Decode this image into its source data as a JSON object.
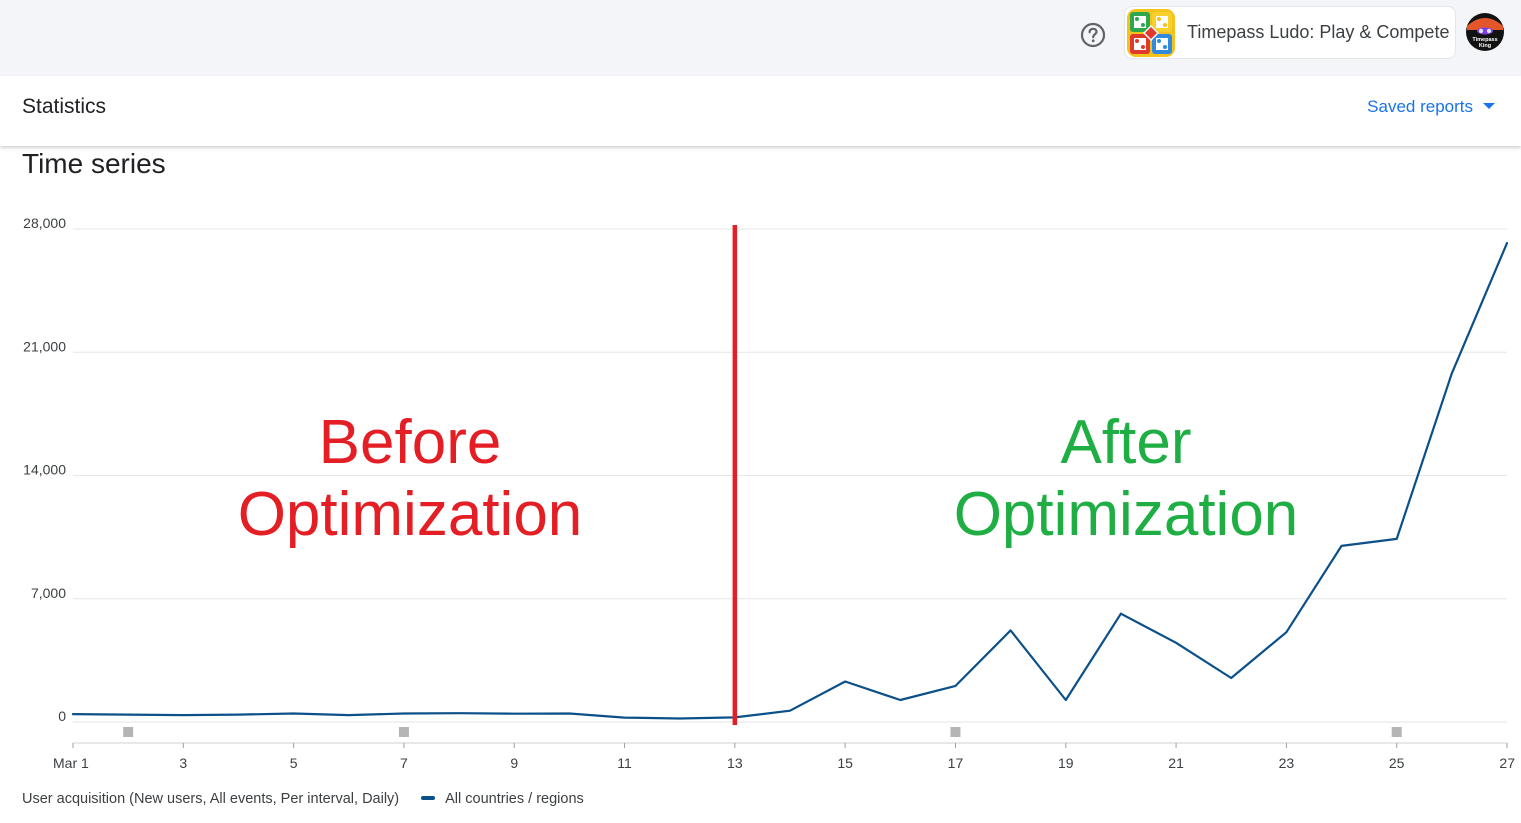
{
  "header": {
    "help_icon": "help-circle-icon",
    "app_name": "Timepass Ludo: Play & Compete",
    "app_logo_icon": "ludo-board-icon",
    "avatar_icon": "timepass-king-avatar",
    "avatar_text": "Timepass King"
  },
  "page": {
    "title": "Statistics",
    "saved_reports_label": "Saved reports",
    "section_title": "Time series"
  },
  "annotations": {
    "before_label_line1": "Before",
    "before_label_line2": "Optimization",
    "after_label_line1": "After",
    "after_label_line2": "Optimization",
    "before_color": "#e31e24",
    "after_color": "#1fae43",
    "divider_color": "#e31e24",
    "divider_at_day": 13
  },
  "legend": {
    "metric_label": "User acquisition (New users, All events, Per interval, Daily)",
    "series_label": "All countries / regions",
    "series_color": "#0b5088"
  },
  "chart_data": {
    "type": "line",
    "x": [
      1,
      2,
      3,
      4,
      5,
      6,
      7,
      8,
      9,
      10,
      11,
      12,
      13,
      14,
      15,
      16,
      17,
      18,
      19,
      20,
      21,
      22,
      23,
      24,
      25,
      26,
      27
    ],
    "x_tick_labels": [
      "Mar 1",
      "3",
      "5",
      "7",
      "9",
      "11",
      "13",
      "15",
      "17",
      "19",
      "21",
      "23",
      "25",
      "27"
    ],
    "x_tick_days": [
      1,
      3,
      5,
      7,
      9,
      11,
      13,
      15,
      17,
      19,
      21,
      23,
      25,
      27
    ],
    "series": [
      {
        "name": "All countries / regions",
        "color": "#0b5088",
        "values": [
          450,
          420,
          390,
          420,
          480,
          390,
          480,
          500,
          470,
          480,
          250,
          200,
          260,
          640,
          2300,
          1250,
          2050,
          5200,
          1250,
          6150,
          4500,
          2500,
          5100,
          10000,
          10400,
          19800,
          27200
        ]
      }
    ],
    "ylim": [
      0,
      28000
    ],
    "y_ticks": [
      0,
      7000,
      14000,
      21000,
      28000
    ],
    "y_tick_labels": [
      "0",
      "7,000",
      "14,000",
      "21,000",
      "28,000"
    ],
    "event_marker_days": [
      2,
      7,
      17,
      25
    ],
    "grid": true
  }
}
